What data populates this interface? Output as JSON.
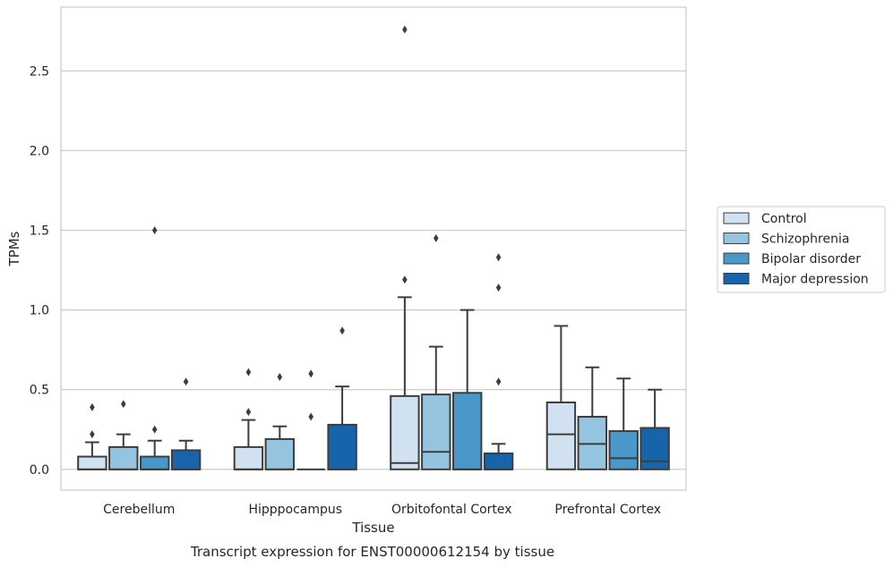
{
  "chart_data": {
    "type": "boxplot",
    "xlabel": "Tissue",
    "ylabel": "TPMs",
    "caption": "Transcript expression for ENST00000612154 by tissue",
    "ylim": [
      -0.13,
      2.9
    ],
    "yticks": [
      0.0,
      0.5,
      1.0,
      1.5,
      2.0,
      2.5
    ],
    "ytick_labels": [
      "0.0",
      "0.5",
      "1.0",
      "1.5",
      "2.0",
      "2.5"
    ],
    "grid": "horizontal",
    "legend_position": "right",
    "categories": [
      "Cerebellum",
      "Hipppocampus",
      "Orbitofontal Cortex",
      "Prefrontal Cortex"
    ],
    "series": [
      {
        "name": "Control",
        "color": "#d0e1f2",
        "boxes": [
          {
            "min": 0.0,
            "q1": 0.0,
            "median": 0.0,
            "q3": 0.08,
            "max": 0.17,
            "outliers": [
              0.22,
              0.39
            ]
          },
          {
            "min": 0.0,
            "q1": 0.0,
            "median": 0.0,
            "q3": 0.14,
            "max": 0.31,
            "outliers": [
              0.36,
              0.61
            ]
          },
          {
            "min": 0.0,
            "q1": 0.0,
            "median": 0.04,
            "q3": 0.46,
            "max": 1.08,
            "outliers": [
              1.19,
              2.76
            ]
          },
          {
            "min": 0.0,
            "q1": 0.0,
            "median": 0.22,
            "q3": 0.42,
            "max": 0.9,
            "outliers": []
          }
        ]
      },
      {
        "name": "Schizophrenia",
        "color": "#94c4df",
        "boxes": [
          {
            "min": 0.0,
            "q1": 0.0,
            "median": 0.0,
            "q3": 0.14,
            "max": 0.22,
            "outliers": [
              0.41
            ]
          },
          {
            "min": 0.0,
            "q1": 0.0,
            "median": 0.0,
            "q3": 0.19,
            "max": 0.27,
            "outliers": [
              0.58
            ]
          },
          {
            "min": 0.0,
            "q1": 0.0,
            "median": 0.11,
            "q3": 0.47,
            "max": 0.77,
            "outliers": [
              1.45
            ]
          },
          {
            "min": 0.0,
            "q1": 0.0,
            "median": 0.16,
            "q3": 0.33,
            "max": 0.64,
            "outliers": []
          }
        ]
      },
      {
        "name": "Bipolar disorder",
        "color": "#4a98c9",
        "boxes": [
          {
            "min": 0.0,
            "q1": 0.0,
            "median": 0.0,
            "q3": 0.08,
            "max": 0.18,
            "outliers": [
              0.25,
              1.5
            ]
          },
          {
            "min": 0.0,
            "q1": 0.0,
            "median": 0.0,
            "q3": 0.0,
            "max": 0.0,
            "outliers": [
              0.33,
              0.6
            ]
          },
          {
            "min": 0.0,
            "q1": 0.0,
            "median": 0.0,
            "q3": 0.48,
            "max": 1.0,
            "outliers": []
          },
          {
            "min": 0.0,
            "q1": 0.0,
            "median": 0.07,
            "q3": 0.24,
            "max": 0.57,
            "outliers": []
          }
        ]
      },
      {
        "name": "Major depression",
        "color": "#1764ab",
        "boxes": [
          {
            "min": 0.0,
            "q1": 0.0,
            "median": 0.0,
            "q3": 0.12,
            "max": 0.18,
            "outliers": [
              0.55
            ]
          },
          {
            "min": 0.0,
            "q1": 0.0,
            "median": 0.0,
            "q3": 0.28,
            "max": 0.52,
            "outliers": [
              0.87
            ]
          },
          {
            "min": 0.0,
            "q1": 0.0,
            "median": 0.0,
            "q3": 0.1,
            "max": 0.16,
            "outliers": [
              0.55,
              1.14,
              1.33
            ]
          },
          {
            "min": 0.0,
            "q1": 0.0,
            "median": 0.05,
            "q3": 0.26,
            "max": 0.5,
            "outliers": []
          }
        ]
      }
    ]
  }
}
